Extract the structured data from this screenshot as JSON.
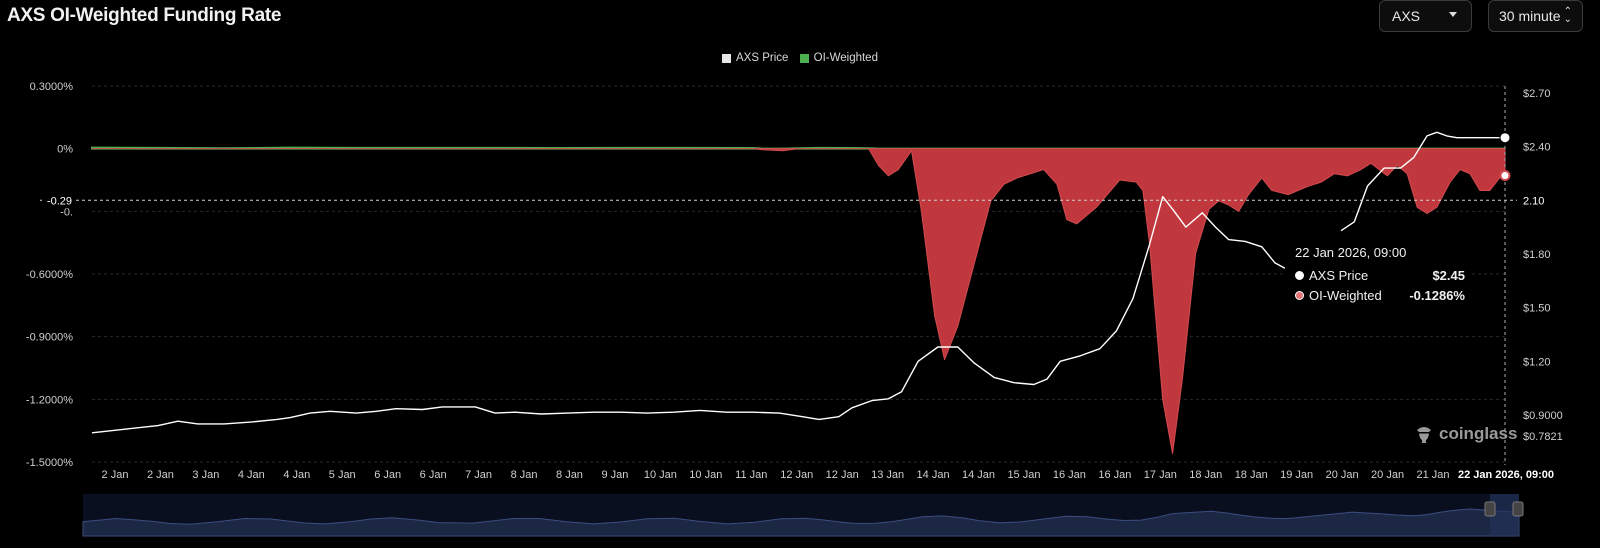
{
  "header": {
    "title": "AXS OI-Weighted Funding Rate",
    "symbol_select": "AXS",
    "interval_select": "30 minute"
  },
  "legend": [
    {
      "label": "AXS Price",
      "color": "#e6e6e6"
    },
    {
      "label": "OI-Weighted",
      "color": "#4caf50"
    }
  ],
  "tooltip": {
    "time": "22 Jan 2026, 09:00",
    "rows": [
      {
        "label": "AXS Price",
        "value": "$2.45",
        "color": "#ffffff"
      },
      {
        "label": "OI-Weighted",
        "value": "-0.1286%",
        "color": "#e57373"
      }
    ]
  },
  "crosshair": {
    "left_label": "-0.29",
    "right_label": "2.10",
    "x_label": "22 Jan 2026, 09:00"
  },
  "watermark": "coinglass",
  "chart_data": {
    "type": "area",
    "title": "AXS OI-Weighted Funding Rate",
    "y_left": {
      "ticks": [
        "0.3000%",
        "0%",
        "-0.",
        "-0.6000%",
        "-0.9000%",
        "-1.2000%",
        "-1.5000%"
      ],
      "range": [
        -1.5,
        0.3
      ],
      "unit": "%"
    },
    "y_right": {
      "ticks": [
        "$2.70",
        "$2.40",
        "2.10",
        "$1.80",
        "$1.50",
        "$1.20",
        "$0.9000",
        "$0.7821"
      ],
      "range": [
        0.7821,
        2.7
      ]
    },
    "x_ticks": [
      "2 Jan",
      "2 Jan",
      "3 Jan",
      "4 Jan",
      "4 Jan",
      "5 Jan",
      "6 Jan",
      "6 Jan",
      "7 Jan",
      "8 Jan",
      "8 Jan",
      "9 Jan",
      "10 Jan",
      "10 Jan",
      "11 Jan",
      "12 Jan",
      "12 Jan",
      "13 Jan",
      "14 Jan",
      "14 Jan",
      "15 Jan",
      "16 Jan",
      "16 Jan",
      "17 Jan",
      "18 Jan",
      "18 Jan",
      "19 Jan",
      "20 Jan",
      "20 Jan",
      "21 Jan"
    ],
    "x_range": [
      1.0,
      22.38
    ],
    "grid": true,
    "legend_position": "top-center",
    "series": [
      {
        "name": "OI-Weighted",
        "kind": "area",
        "axis": "left",
        "positive_color": "#4caf50",
        "negative_color": "#c0383d",
        "points": [
          [
            1.0,
            0.005
          ],
          [
            2.0,
            0.004
          ],
          [
            3.0,
            0.002
          ],
          [
            4.0,
            0.005
          ],
          [
            5.0,
            0.004
          ],
          [
            6.0,
            0.004
          ],
          [
            7.0,
            0.004
          ],
          [
            8.0,
            0.003
          ],
          [
            9.0,
            0.004
          ],
          [
            10.0,
            0.004
          ],
          [
            11.0,
            0.003
          ],
          [
            11.15,
            -0.005
          ],
          [
            11.45,
            -0.01
          ],
          [
            11.7,
            0.002
          ],
          [
            12.0,
            0.004
          ],
          [
            12.5,
            0.003
          ],
          [
            12.75,
            0.002
          ],
          [
            12.9,
            -0.08
          ],
          [
            13.05,
            -0.13
          ],
          [
            13.2,
            -0.1
          ],
          [
            13.4,
            -0.01
          ],
          [
            13.55,
            -0.3
          ],
          [
            13.75,
            -0.8
          ],
          [
            13.9,
            -1.01
          ],
          [
            14.1,
            -0.85
          ],
          [
            14.35,
            -0.55
          ],
          [
            14.6,
            -0.25
          ],
          [
            14.8,
            -0.17
          ],
          [
            15.0,
            -0.14
          ],
          [
            15.4,
            -0.1
          ],
          [
            15.6,
            -0.17
          ],
          [
            15.75,
            -0.34
          ],
          [
            15.9,
            -0.36
          ],
          [
            16.2,
            -0.28
          ],
          [
            16.55,
            -0.15
          ],
          [
            16.8,
            -0.16
          ],
          [
            16.9,
            -0.2
          ],
          [
            17.0,
            -0.45
          ],
          [
            17.2,
            -1.2
          ],
          [
            17.35,
            -1.46
          ],
          [
            17.5,
            -1.1
          ],
          [
            17.7,
            -0.5
          ],
          [
            17.9,
            -0.29
          ],
          [
            18.05,
            -0.25
          ],
          [
            18.2,
            -0.27
          ],
          [
            18.35,
            -0.3
          ],
          [
            18.5,
            -0.22
          ],
          [
            18.7,
            -0.14
          ],
          [
            18.85,
            -0.2
          ],
          [
            19.1,
            -0.22
          ],
          [
            19.4,
            -0.18
          ],
          [
            19.6,
            -0.16
          ],
          [
            19.8,
            -0.12
          ],
          [
            20.0,
            -0.13
          ],
          [
            20.2,
            -0.1
          ],
          [
            20.35,
            -0.07
          ],
          [
            20.6,
            -0.13
          ],
          [
            20.75,
            -0.08
          ],
          [
            20.9,
            -0.12
          ],
          [
            21.05,
            -0.28
          ],
          [
            21.2,
            -0.31
          ],
          [
            21.35,
            -0.28
          ],
          [
            21.55,
            -0.16
          ],
          [
            21.7,
            -0.1
          ],
          [
            21.85,
            -0.12
          ],
          [
            22.0,
            -0.2
          ],
          [
            22.15,
            -0.2
          ],
          [
            22.35,
            -0.12
          ],
          [
            22.38,
            -0.1286
          ]
        ]
      },
      {
        "name": "AXS Price",
        "kind": "line",
        "axis": "right",
        "color": "#ffffff",
        "points": [
          [
            1.0,
            0.8
          ],
          [
            1.5,
            0.82
          ],
          [
            2.0,
            0.84
          ],
          [
            2.3,
            0.865
          ],
          [
            2.6,
            0.85
          ],
          [
            3.0,
            0.85
          ],
          [
            3.4,
            0.86
          ],
          [
            3.8,
            0.875
          ],
          [
            4.0,
            0.885
          ],
          [
            4.3,
            0.91
          ],
          [
            4.6,
            0.92
          ],
          [
            5.0,
            0.91
          ],
          [
            5.3,
            0.92
          ],
          [
            5.6,
            0.935
          ],
          [
            6.0,
            0.93
          ],
          [
            6.3,
            0.945
          ],
          [
            6.8,
            0.945
          ],
          [
            7.1,
            0.91
          ],
          [
            7.4,
            0.915
          ],
          [
            7.8,
            0.905
          ],
          [
            8.2,
            0.91
          ],
          [
            8.6,
            0.915
          ],
          [
            9.0,
            0.915
          ],
          [
            9.4,
            0.91
          ],
          [
            9.8,
            0.915
          ],
          [
            10.2,
            0.925
          ],
          [
            10.6,
            0.915
          ],
          [
            11.0,
            0.915
          ],
          [
            11.4,
            0.91
          ],
          [
            11.75,
            0.89
          ],
          [
            12.0,
            0.875
          ],
          [
            12.3,
            0.89
          ],
          [
            12.5,
            0.94
          ],
          [
            12.8,
            0.98
          ],
          [
            13.05,
            0.99
          ],
          [
            13.25,
            1.03
          ],
          [
            13.5,
            1.2
          ],
          [
            13.8,
            1.28
          ],
          [
            14.1,
            1.28
          ],
          [
            14.35,
            1.19
          ],
          [
            14.65,
            1.11
          ],
          [
            14.95,
            1.08
          ],
          [
            15.25,
            1.07
          ],
          [
            15.45,
            1.1
          ],
          [
            15.65,
            1.2
          ],
          [
            15.95,
            1.23
          ],
          [
            16.25,
            1.27
          ],
          [
            16.5,
            1.37
          ],
          [
            16.75,
            1.55
          ],
          [
            17.0,
            1.85
          ],
          [
            17.2,
            2.12
          ],
          [
            17.35,
            2.05
          ],
          [
            17.55,
            1.95
          ],
          [
            17.8,
            2.03
          ],
          [
            18.0,
            1.95
          ],
          [
            18.2,
            1.88
          ],
          [
            18.45,
            1.87
          ],
          [
            18.7,
            1.84
          ],
          [
            18.9,
            1.75
          ],
          [
            19.05,
            1.72
          ],
          null,
          [
            19.9,
            1.93
          ],
          [
            20.1,
            1.98
          ],
          [
            20.3,
            2.18
          ],
          [
            20.55,
            2.28
          ],
          [
            20.8,
            2.28
          ],
          [
            21.0,
            2.34
          ],
          [
            21.2,
            2.46
          ],
          [
            21.35,
            2.48
          ],
          [
            21.5,
            2.46
          ],
          [
            21.65,
            2.45
          ],
          [
            22.38,
            2.45
          ]
        ]
      }
    ]
  },
  "navigator": {
    "ticks_note": ""
  }
}
